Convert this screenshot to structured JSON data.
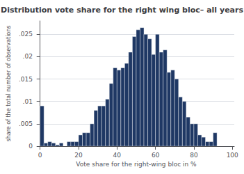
{
  "chart_data": {
    "type": "histogram",
    "title": "Distribution vote share for the right wing bloc– all years",
    "xlabel": "Vote share for the right-wing bloc in %",
    "ylabel": "share of the total number of observations",
    "color": "#1f3864",
    "bins": [
      0,
      2,
      4,
      6,
      8,
      10,
      12,
      14,
      16,
      18,
      20,
      22,
      24,
      26,
      28,
      30,
      32,
      34,
      36,
      38,
      40,
      42,
      44,
      46,
      48,
      50,
      52,
      54,
      56,
      58,
      60,
      62,
      64,
      66,
      68,
      70,
      72,
      74,
      76,
      78,
      80,
      82,
      84,
      86,
      88,
      90,
      92,
      94,
      96,
      98,
      100
    ],
    "values": [
      0.009,
      0.0007,
      0.001,
      0.0007,
      0.0003,
      0.0007,
      0.0,
      0.001,
      0.001,
      0.001,
      0.0025,
      0.003,
      0.003,
      0.005,
      0.008,
      0.009,
      0.009,
      0.0105,
      0.014,
      0.0175,
      0.017,
      0.0175,
      0.0185,
      0.021,
      0.0245,
      0.026,
      0.0265,
      0.025,
      0.024,
      0.0205,
      0.025,
      0.021,
      0.0215,
      0.0165,
      0.017,
      0.015,
      0.011,
      0.01,
      0.0065,
      0.005,
      0.005,
      0.0025,
      0.002,
      0.001,
      0.001,
      0.003,
      0.0,
      0.0,
      0.0,
      0.0
    ],
    "xlim": [
      -1,
      101
    ],
    "ylim": [
      0,
      0.028
    ],
    "xticks": [
      0,
      20,
      40,
      60,
      80,
      100
    ],
    "yticks": [
      0,
      {
        "value": 0.005,
        "label": ".005"
      },
      {
        "value": 0.01,
        "label": ".01"
      },
      {
        "value": 0.015,
        "label": ".015"
      },
      {
        "value": 0.02,
        "label": ".02"
      },
      {
        "value": 0.025,
        "label": ".025"
      }
    ],
    "grid": true
  }
}
